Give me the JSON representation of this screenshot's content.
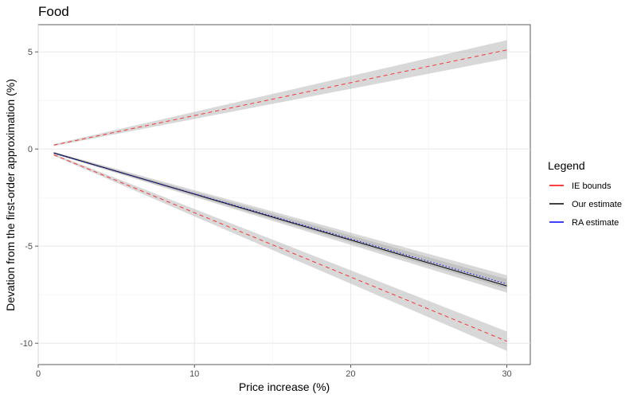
{
  "chart_data": {
    "type": "line",
    "title": "Food",
    "xlabel": "Price increase (%)",
    "ylabel": "Devation from the first-order approximation (%)",
    "xlim": [
      0,
      31.5
    ],
    "ylim": [
      -11.1,
      6.4
    ],
    "x_ticks": [
      0,
      10,
      20,
      30
    ],
    "x_tick_labels": [
      "0",
      "10",
      "20",
      "30"
    ],
    "y_ticks": [
      5,
      0,
      -5,
      -10
    ],
    "y_tick_labels": [
      "5",
      "0",
      "-5",
      "-10"
    ],
    "grid": true,
    "legend": {
      "title": "Legend",
      "position": "right",
      "entries": [
        {
          "label": "IE bounds",
          "color": "#ff0000"
        },
        {
          "label": "Our estimate",
          "color": "#000000"
        },
        {
          "label": "RA estimate",
          "color": "#0000ff"
        }
      ]
    },
    "series": [
      {
        "name": "IE bounds",
        "color": "#ff0000",
        "style": "dashed",
        "x": [
          1,
          30
        ],
        "y": [
          0.2,
          5.1
        ],
        "band_lower": [
          0.15,
          4.65
        ],
        "band_upper": [
          0.25,
          5.6
        ]
      },
      {
        "name": "IE bounds",
        "color": "#ff0000",
        "style": "dashed",
        "x": [
          1,
          30
        ],
        "y": [
          -0.3,
          -9.9
        ],
        "band_lower": [
          -0.35,
          -10.4
        ],
        "band_upper": [
          -0.25,
          -9.4
        ]
      },
      {
        "name": "Our estimate",
        "color": "#000000",
        "style": "solid",
        "x": [
          1,
          30
        ],
        "y": [
          -0.2,
          -7.05
        ],
        "band_lower": [
          -0.25,
          -7.4
        ],
        "band_upper": [
          -0.15,
          -6.5
        ]
      },
      {
        "name": "RA estimate",
        "color": "#0000ff",
        "style": "dotted",
        "x": [
          1,
          30
        ],
        "y": [
          -0.22,
          -6.95
        ],
        "band_lower": [
          -0.26,
          -7.2
        ],
        "band_upper": [
          -0.18,
          -6.7
        ]
      }
    ]
  }
}
